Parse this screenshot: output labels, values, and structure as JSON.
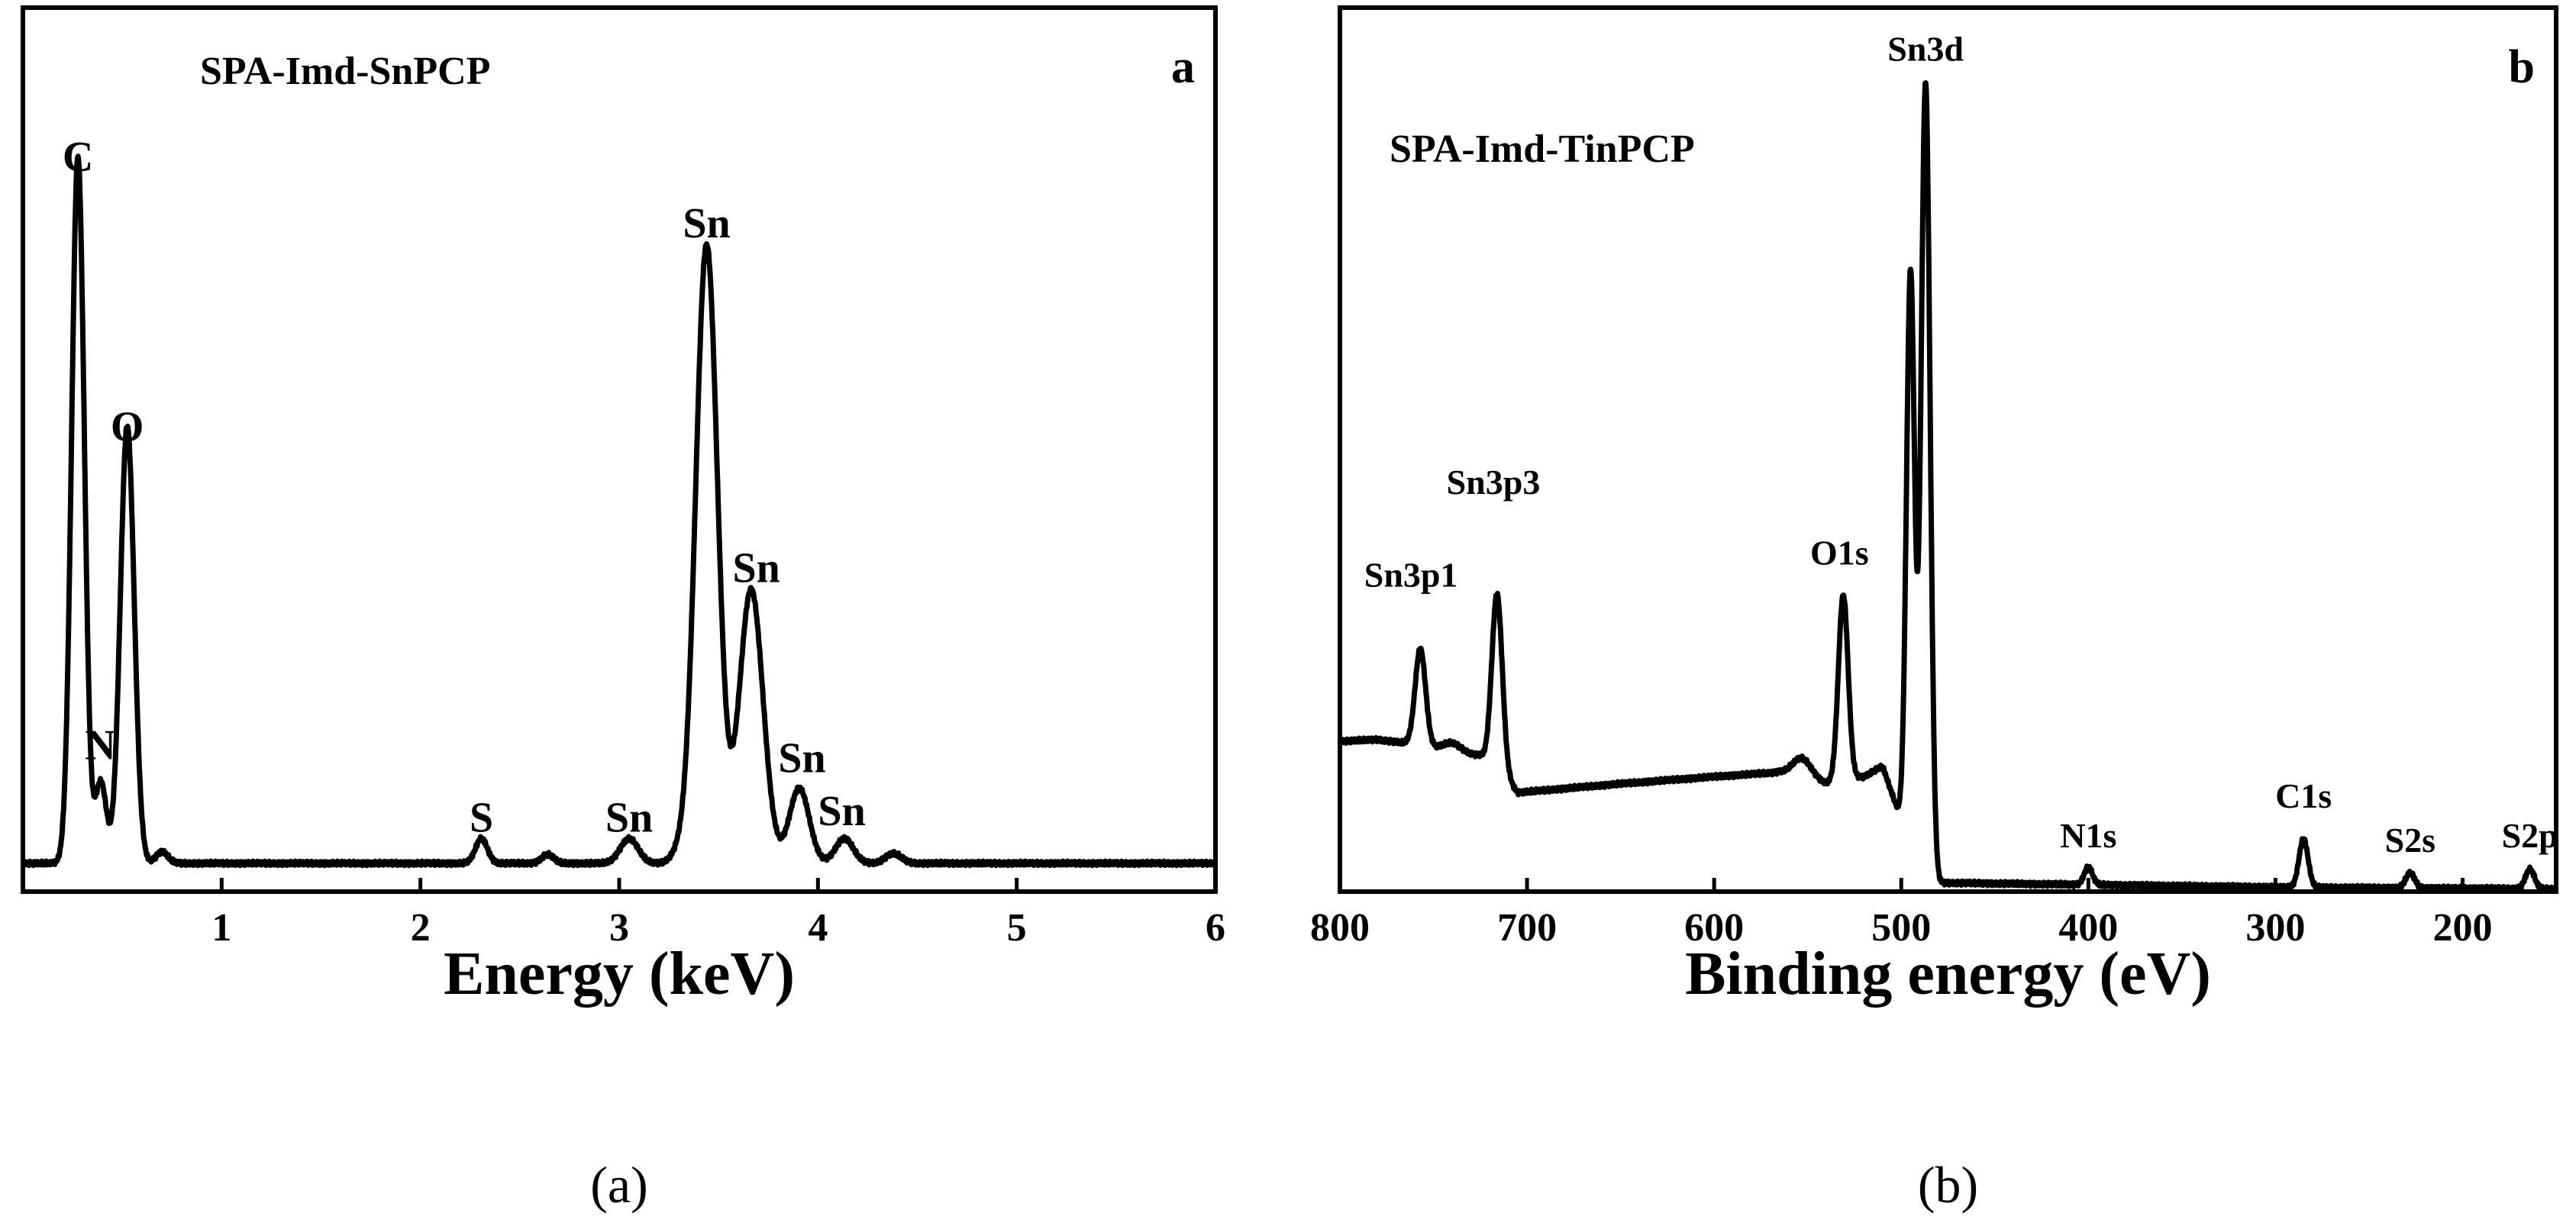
{
  "figure": {
    "panel_captions": [
      "(a)",
      "(b)"
    ]
  },
  "chart_data": [
    {
      "type": "line",
      "panel_letter": "a",
      "caption": "(a)",
      "title": "SPA-Imd-SnPCP",
      "xlabel": "Energy (keV)",
      "ylabel": "",
      "xlim": [
        0,
        6
      ],
      "ylim": [
        0,
        100
      ],
      "xticks": [
        1,
        2,
        3,
        4,
        5,
        6
      ],
      "grid": false,
      "legend": "none",
      "color": "#000000",
      "baseline": 3.2,
      "peaks": [
        {
          "x": 0.277,
          "h": 80.0,
          "w": 0.032
        },
        {
          "x": 0.392,
          "h": 9.2,
          "w": 0.028
        },
        {
          "x": 0.525,
          "h": 49.5,
          "w": 0.035
        },
        {
          "x": 0.7,
          "h": 1.3,
          "w": 0.03
        },
        {
          "x": 2.307,
          "h": 2.8,
          "w": 0.03
        },
        {
          "x": 2.64,
          "h": 1.0,
          "w": 0.03
        },
        {
          "x": 3.05,
          "h": 2.8,
          "w": 0.045
        },
        {
          "x": 3.3,
          "h": 1.0,
          "w": 0.04
        },
        {
          "x": 3.44,
          "h": 70.0,
          "w": 0.055
        },
        {
          "x": 3.664,
          "h": 31.0,
          "w": 0.06
        },
        {
          "x": 3.906,
          "h": 8.5,
          "w": 0.05
        },
        {
          "x": 4.133,
          "h": 2.8,
          "w": 0.045
        },
        {
          "x": 4.38,
          "h": 1.1,
          "w": 0.04
        }
      ],
      "annotations": [
        {
          "text": "C",
          "x": 0.277,
          "y": 81.5
        },
        {
          "text": "N",
          "x": 0.39,
          "y": 15.0
        },
        {
          "text": "O",
          "x": 0.525,
          "y": 51.0
        },
        {
          "text": "S",
          "x": 2.307,
          "y": 6.8
        },
        {
          "text": "Sn",
          "x": 3.05,
          "y": 6.8
        },
        {
          "text": "Sn",
          "x": 3.44,
          "y": 74.0
        },
        {
          "text": "Sn",
          "x": 3.69,
          "y": 35.0
        },
        {
          "text": "Sn",
          "x": 3.92,
          "y": 13.5
        },
        {
          "text": "Sn",
          "x": 4.12,
          "y": 7.5
        }
      ]
    },
    {
      "type": "line",
      "panel_letter": "b",
      "caption": "(b)",
      "title": "SPA-Imd-TinPCP",
      "xlabel": "Binding energy (eV)",
      "ylabel": "",
      "xlim": [
        800,
        150
      ],
      "ylim": [
        0,
        100
      ],
      "xticks": [
        800,
        700,
        600,
        500,
        400,
        300,
        200
      ],
      "grid": false,
      "legend": "none",
      "color": "#000000",
      "background": [
        {
          "x": 800,
          "y": 17.0
        },
        {
          "x": 780,
          "y": 17.2
        },
        {
          "x": 765,
          "y": 16.8
        },
        {
          "x": 745,
          "y": 16.0
        },
        {
          "x": 735,
          "y": 15.6
        },
        {
          "x": 725,
          "y": 15.4
        },
        {
          "x": 710,
          "y": 12.5
        },
        {
          "x": 705,
          "y": 11.2
        },
        {
          "x": 650,
          "y": 12.2
        },
        {
          "x": 600,
          "y": 13.0
        },
        {
          "x": 565,
          "y": 13.5
        },
        {
          "x": 540,
          "y": 12.2
        },
        {
          "x": 520,
          "y": 13.0
        },
        {
          "x": 510,
          "y": 14.2
        },
        {
          "x": 500,
          "y": 8.0
        },
        {
          "x": 492,
          "y": 2.0
        },
        {
          "x": 480,
          "y": 1.0
        },
        {
          "x": 300,
          "y": 0.5
        },
        {
          "x": 150,
          "y": 0.3
        }
      ],
      "peaks": [
        {
          "x": 757,
          "h": 11.0,
          "w": 2.8
        },
        {
          "x": 740,
          "h": 1.0,
          "w": 5.0
        },
        {
          "x": 716,
          "h": 20.0,
          "w": 2.8
        },
        {
          "x": 553,
          "h": 2.2,
          "w": 5.0
        },
        {
          "x": 531,
          "h": 21.0,
          "w": 2.6
        },
        {
          "x": 495,
          "h": 66.0,
          "w": 2.2
        },
        {
          "x": 487,
          "h": 90.0,
          "w": 2.4
        },
        {
          "x": 400,
          "h": 2.0,
          "w": 2.2
        },
        {
          "x": 285,
          "h": 5.5,
          "w": 2.4
        },
        {
          "x": 228,
          "h": 1.7,
          "w": 2.4
        },
        {
          "x": 164,
          "h": 2.2,
          "w": 2.4
        }
      ],
      "annotations": [
        {
          "text": "Sn3p1",
          "x": 762,
          "y": 34.5
        },
        {
          "text": "Sn3p3",
          "x": 718,
          "y": 45.0
        },
        {
          "text": "O1s",
          "x": 533,
          "y": 37.0
        },
        {
          "text": "Sn3d",
          "x": 487,
          "y": 94.0
        },
        {
          "text": "N1s",
          "x": 400,
          "y": 5.0
        },
        {
          "text": "C1s",
          "x": 285,
          "y": 9.5
        },
        {
          "text": "S2s",
          "x": 228,
          "y": 4.5
        },
        {
          "text": "S2p",
          "x": 164,
          "y": 5.0
        }
      ]
    }
  ]
}
